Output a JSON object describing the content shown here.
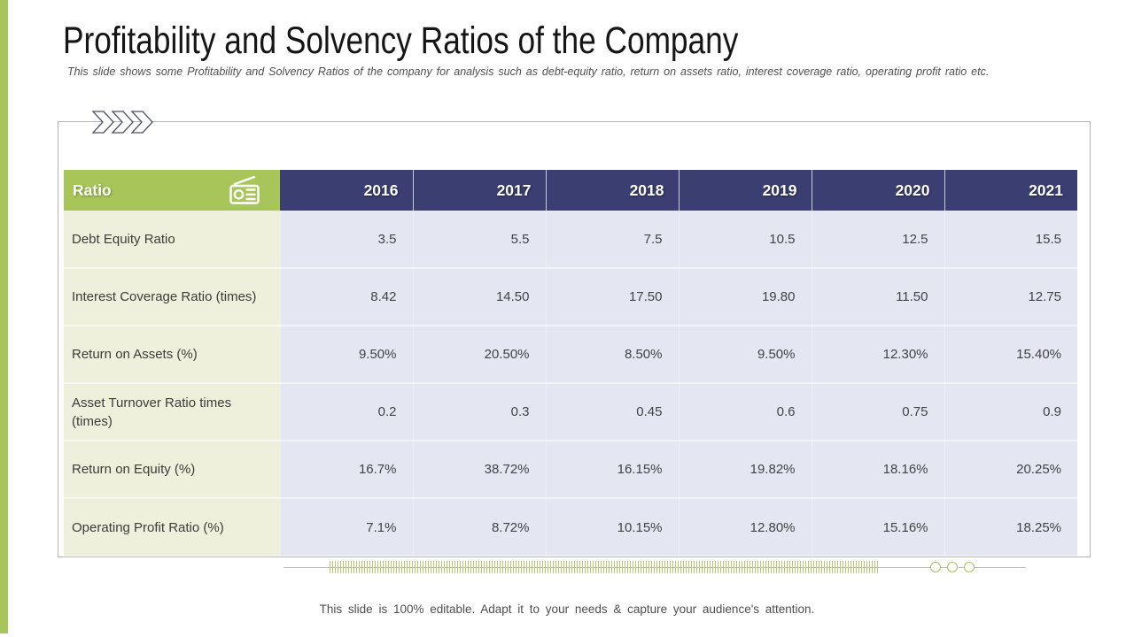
{
  "slide": {
    "title": "Profitability and Solvency Ratios of the Company",
    "subtitle": "This slide shows some Profitability and Solvency Ratios of the company for analysis such as debt-equity ratio, return on assets ratio, interest coverage ratio, operating profit ratio etc.",
    "footer": "This slide is 100% editable. Adapt it to your needs & capture your audience's attention."
  },
  "icons": {
    "header_icon": "radio-icon",
    "top_decoration": "chevron-arrows-icon"
  },
  "colors": {
    "accent_green": "#a7c558",
    "header_navy": "#3b3e70",
    "label_column_bg": "#eef0db",
    "value_cell_bg": "#e4e6f2",
    "panel_border": "#b5b5b5"
  },
  "table": {
    "header": {
      "ratio_label": "Ratio",
      "years": [
        "2016",
        "2017",
        "2018",
        "2019",
        "2020",
        "2021"
      ]
    },
    "rows": [
      {
        "label": "Debt Equity Ratio",
        "values": [
          "3.5",
          "5.5",
          "7.5",
          "10.5",
          "12.5",
          "15.5"
        ]
      },
      {
        "label": "Interest Coverage Ratio (times)",
        "values": [
          "8.42",
          "14.50",
          "17.50",
          "19.80",
          "11.50",
          "12.75"
        ]
      },
      {
        "label": "Return on Assets (%)",
        "values": [
          "9.50%",
          "20.50%",
          "8.50%",
          "9.50%",
          "12.30%",
          "15.40%"
        ]
      },
      {
        "label": "Asset Turnover Ratio times (times)",
        "values": [
          "0.2",
          "0.3",
          "0.45",
          "0.6",
          "0.75",
          "0.9"
        ]
      },
      {
        "label": "Return on Equity (%)",
        "values": [
          "16.7%",
          "38.72%",
          "16.15%",
          "19.82%",
          "18.16%",
          "20.25%"
        ]
      },
      {
        "label": "Operating Profit Ratio (%)",
        "values": [
          "7.1%",
          "8.72%",
          "10.15%",
          "12.80%",
          "15.16%",
          "18.25%"
        ]
      }
    ]
  }
}
